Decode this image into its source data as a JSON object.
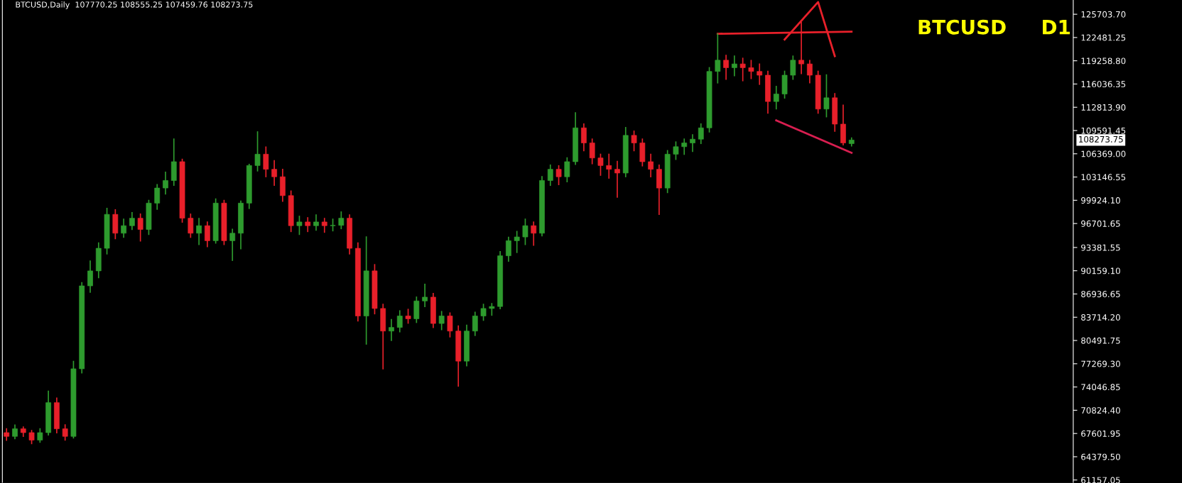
{
  "chart_data": {
    "type": "candlestick",
    "title": "BTCUSD,Daily  107770.25 108555.25 107459.76 108273.75",
    "subtitle": "BTCUSD     D1",
    "categories": [
      null,
      null,
      null,
      null,
      null,
      null,
      null,
      null,
      null,
      null,
      null,
      null,
      null,
      null,
      null,
      null,
      null,
      null,
      null,
      null,
      null,
      null,
      null,
      null,
      null,
      null,
      null,
      null,
      null,
      null,
      null,
      null,
      null,
      null,
      null,
      null,
      null,
      null,
      null,
      null,
      null,
      null,
      null,
      null,
      null,
      null,
      null,
      null,
      null,
      null,
      null,
      null,
      null,
      null,
      null,
      null,
      null,
      null,
      null,
      null,
      null,
      null,
      null,
      null,
      null,
      null,
      null,
      null,
      null,
      null,
      null,
      null,
      null,
      null,
      null,
      null,
      null,
      null,
      null,
      null,
      null,
      null,
      null,
      null,
      null,
      null,
      null,
      null,
      null,
      null,
      null,
      null,
      null,
      null,
      null,
      null,
      null,
      null,
      null,
      null,
      null,
      null,
      null,
      null,
      null,
      null,
      null,
      null,
      null,
      null,
      null,
      null,
      null,
      null,
      null,
      null,
      null,
      null,
      null,
      null,
      null,
      null,
      null,
      null,
      null,
      null,
      null,
      null
    ],
    "ohlc": [
      [
        67720,
        68250,
        66680,
        67200
      ],
      [
        67200,
        68760,
        66900,
        68250
      ],
      [
        68250,
        68500,
        67200,
        67720
      ],
      [
        67720,
        68000,
        66200,
        66680
      ],
      [
        66680,
        68250,
        66400,
        67720
      ],
      [
        67720,
        73460,
        67400,
        71880
      ],
      [
        71880,
        72500,
        67700,
        68250
      ],
      [
        68250,
        68800,
        66700,
        67200
      ],
      [
        67200,
        77600,
        67000,
        76570
      ],
      [
        76570,
        88500,
        76000,
        88060
      ],
      [
        88060,
        91500,
        87200,
        90140
      ],
      [
        90140,
        94000,
        89200,
        93270
      ],
      [
        93270,
        98800,
        92500,
        97970
      ],
      [
        97970,
        98600,
        94600,
        95360
      ],
      [
        95360,
        97300,
        94800,
        96400
      ],
      [
        96400,
        98200,
        95900,
        97440
      ],
      [
        97440,
        98000,
        94300,
        95880
      ],
      [
        95880,
        99900,
        95200,
        99530
      ],
      [
        99530,
        102100,
        98700,
        101620
      ],
      [
        101620,
        103800,
        100800,
        102660
      ],
      [
        102660,
        108400,
        102000,
        105270
      ],
      [
        105270,
        105600,
        96900,
        97440
      ],
      [
        97440,
        98000,
        94800,
        95360
      ],
      [
        95360,
        97400,
        93800,
        96400
      ],
      [
        96400,
        96900,
        93500,
        94320
      ],
      [
        94320,
        100100,
        94000,
        99530
      ],
      [
        99530,
        99900,
        93800,
        94320
      ],
      [
        94320,
        95900,
        91600,
        95360
      ],
      [
        95360,
        99800,
        93200,
        99530
      ],
      [
        99530,
        104900,
        98800,
        104740
      ],
      [
        104740,
        109400,
        104000,
        106310
      ],
      [
        106310,
        107300,
        103200,
        104220
      ],
      [
        104220,
        105400,
        102000,
        103180
      ],
      [
        103180,
        104200,
        99800,
        100570
      ],
      [
        100570,
        101200,
        95600,
        96400
      ],
      [
        96400,
        97700,
        95200,
        96920
      ],
      [
        96920,
        97500,
        95600,
        96400
      ],
      [
        96400,
        97900,
        95800,
        96920
      ],
      [
        96920,
        97400,
        95500,
        96400
      ],
      [
        96400,
        97300,
        95700,
        96450
      ],
      [
        96450,
        98300,
        96000,
        97440
      ],
      [
        97440,
        97900,
        92500,
        93270
      ],
      [
        93270,
        94000,
        83200,
        83890
      ],
      [
        83890,
        94840,
        80000,
        90140
      ],
      [
        90140,
        91000,
        84200,
        84930
      ],
      [
        84930,
        85500,
        76570,
        81800
      ],
      [
        81800,
        83400,
        80500,
        82300
      ],
      [
        82300,
        84600,
        81700,
        83890
      ],
      [
        83890,
        84800,
        82900,
        83500
      ],
      [
        83500,
        86500,
        83000,
        85970
      ],
      [
        85970,
        88270,
        85200,
        86500
      ],
      [
        86500,
        87000,
        82300,
        82850
      ],
      [
        82850,
        84500,
        82000,
        83890
      ],
      [
        83890,
        84300,
        81000,
        81800
      ],
      [
        81800,
        82500,
        74170,
        77630
      ],
      [
        77630,
        82600,
        77000,
        81800
      ],
      [
        81800,
        84400,
        81200,
        83890
      ],
      [
        83890,
        85500,
        83300,
        84930
      ],
      [
        84930,
        85600,
        84000,
        85200
      ],
      [
        85200,
        92800,
        84900,
        92230
      ],
      [
        92230,
        94800,
        91500,
        94320
      ],
      [
        94320,
        95600,
        92700,
        94840
      ],
      [
        94840,
        97300,
        93800,
        96400
      ],
      [
        96400,
        96900,
        93700,
        95360
      ],
      [
        95360,
        103200,
        95000,
        102660
      ],
      [
        102660,
        104800,
        102000,
        104220
      ],
      [
        104220,
        104700,
        102100,
        103180
      ],
      [
        103180,
        105800,
        102500,
        105270
      ],
      [
        105270,
        112040,
        104900,
        109960
      ],
      [
        109960,
        110500,
        106800,
        107870
      ],
      [
        107870,
        108400,
        105000,
        105790
      ],
      [
        105790,
        106300,
        103400,
        104740
      ],
      [
        104740,
        106300,
        103000,
        104220
      ],
      [
        104220,
        105300,
        100360,
        103700
      ],
      [
        103700,
        110000,
        103200,
        108920
      ],
      [
        108920,
        109500,
        106800,
        107870
      ],
      [
        107870,
        108400,
        104700,
        105270
      ],
      [
        105270,
        106300,
        103200,
        104220
      ],
      [
        104220,
        104800,
        97970,
        101620
      ],
      [
        101620,
        106800,
        101000,
        106310
      ],
      [
        106310,
        108000,
        105600,
        107350
      ],
      [
        107350,
        108400,
        106300,
        107870
      ],
      [
        107870,
        109000,
        106700,
        108390
      ],
      [
        108390,
        110500,
        107800,
        109960
      ],
      [
        109960,
        118300,
        109400,
        117780
      ],
      [
        117780,
        122990,
        116200,
        119340
      ],
      [
        119340,
        120000,
        116700,
        118300
      ],
      [
        118300,
        119900,
        117200,
        118820
      ],
      [
        118820,
        119600,
        116500,
        118300
      ],
      [
        118300,
        119300,
        116800,
        117780
      ],
      [
        117780,
        118800,
        116000,
        117260
      ],
      [
        117260,
        117800,
        112000,
        113610
      ],
      [
        113610,
        115700,
        112600,
        114650
      ],
      [
        114650,
        117800,
        114100,
        117260
      ],
      [
        117260,
        119900,
        116700,
        119340
      ],
      [
        119340,
        124560,
        117500,
        118820
      ],
      [
        118820,
        119300,
        116200,
        117260
      ],
      [
        117260,
        117800,
        112000,
        112570
      ],
      [
        112570,
        117300,
        111500,
        114130
      ],
      [
        114130,
        114700,
        109500,
        110480
      ],
      [
        110480,
        113100,
        107600,
        107870
      ],
      [
        107770.25,
        108555.25,
        107459.76,
        108273.75
      ],
      null,
      null,
      null,
      null,
      null,
      null,
      null,
      null,
      null,
      null,
      null,
      null,
      null,
      null,
      null,
      null,
      null,
      null,
      null,
      null,
      null,
      null,
      null,
      null,
      null,
      null
    ],
    "colors": [
      "#e8202a",
      "#2e9b2e",
      "#e8202a",
      "#e8202a",
      "#2e9b2e",
      "#2e9b2e",
      "#e8202a",
      "#e8202a",
      "#2e9b2e",
      "#2e9b2e",
      "#2e9b2e",
      "#2e9b2e",
      "#2e9b2e",
      "#e8202a",
      "#2e9b2e",
      "#2e9b2e",
      "#e8202a",
      "#2e9b2e",
      "#2e9b2e",
      "#2e9b2e",
      "#2e9b2e",
      "#e8202a",
      "#e8202a",
      "#2e9b2e",
      "#e8202a",
      "#2e9b2e",
      "#e8202a",
      "#2e9b2e",
      "#2e9b2e",
      "#2e9b2e",
      "#2e9b2e",
      "#e8202a",
      "#e8202a",
      "#e8202a",
      "#e8202a",
      "#2e9b2e",
      "#e8202a",
      "#2e9b2e",
      "#e8202a",
      "#2e9b2e",
      "#2e9b2e",
      "#e8202a",
      "#e8202a",
      "#2e9b2e",
      "#e8202a",
      "#e8202a",
      "#2e9b2e",
      "#2e9b2e",
      "#e8202a",
      "#2e9b2e",
      "#2e9b2e",
      "#e8202a",
      "#2e9b2e",
      "#e8202a",
      "#e8202a",
      "#2e9b2e",
      "#2e9b2e",
      "#2e9b2e",
      "#2e9b2e",
      "#2e9b2e",
      "#2e9b2e",
      "#2e9b2e",
      "#2e9b2e",
      "#e8202a",
      "#2e9b2e",
      "#2e9b2e",
      "#e8202a",
      "#2e9b2e",
      "#2e9b2e",
      "#e8202a",
      "#e8202a",
      "#e8202a",
      "#e8202a",
      "#e8202a",
      "#2e9b2e",
      "#e8202a",
      "#e8202a",
      "#e8202a",
      "#e8202a",
      "#2e9b2e",
      "#2e9b2e",
      "#2e9b2e",
      "#2e9b2e",
      "#2e9b2e",
      "#2e9b2e",
      "#2e9b2e",
      "#e8202a",
      "#2e9b2e",
      "#e8202a",
      "#e8202a",
      "#e8202a",
      "#e8202a",
      "#2e9b2e",
      "#2e9b2e",
      "#2e9b2e",
      "#e8202a",
      "#e8202a",
      "#e8202a",
      "#2e9b2e",
      "#e8202a",
      "#e8202a",
      "#2e9b2e",
      null,
      null,
      null,
      null,
      null,
      null,
      null,
      null,
      null,
      null,
      null,
      null,
      null,
      null,
      null,
      null,
      null,
      null,
      null,
      null,
      null,
      null,
      null,
      null,
      null,
      null
    ],
    "series": [
      {
        "type": "line",
        "color": "#e8202a",
        "values": [
          null,
          null,
          null,
          null,
          null,
          null,
          null,
          null,
          null,
          null,
          null,
          null,
          null,
          null,
          null,
          null,
          null,
          null,
          null,
          null,
          null,
          null,
          null,
          null,
          null,
          null,
          null,
          null,
          null,
          null,
          null,
          null,
          null,
          null,
          null,
          null,
          null,
          null,
          null,
          null,
          null,
          null,
          null,
          null,
          null,
          null,
          null,
          null,
          null,
          null,
          null,
          null,
          null,
          null,
          null,
          null,
          null,
          null,
          null,
          null,
          null,
          null,
          null,
          null,
          null,
          null,
          null,
          null,
          null,
          null,
          null,
          null,
          null,
          null,
          null,
          null,
          null,
          null,
          null,
          null,
          null,
          null,
          null,
          null,
          null,
          123000,
          null,
          null,
          null,
          null,
          null,
          null,
          null,
          null,
          null,
          null,
          null,
          null,
          null,
          null,
          null,
          123300,
          null,
          null,
          null,
          null,
          null,
          null,
          null,
          null,
          null,
          null,
          null,
          null,
          null,
          null,
          null,
          null,
          null,
          null,
          null,
          null,
          null,
          null,
          null,
          null,
          null,
          null
        ]
      },
      {
        "type": "line",
        "color": "#e8202a",
        "values": [
          null,
          null,
          null,
          null,
          null,
          null,
          null,
          null,
          null,
          null,
          null,
          null,
          null,
          null,
          null,
          null,
          null,
          null,
          null,
          null,
          null,
          null,
          null,
          null,
          null,
          null,
          null,
          null,
          null,
          null,
          null,
          null,
          null,
          null,
          null,
          null,
          null,
          null,
          null,
          null,
          null,
          null,
          null,
          null,
          null,
          null,
          null,
          null,
          null,
          null,
          null,
          null,
          null,
          null,
          null,
          null,
          null,
          null,
          null,
          null,
          null,
          null,
          null,
          null,
          null,
          null,
          null,
          null,
          null,
          null,
          null,
          null,
          null,
          null,
          null,
          null,
          null,
          null,
          null,
          null,
          null,
          null,
          null,
          null,
          null,
          null,
          null,
          null,
          null,
          null,
          null,
          null,
          null,
          122200,
          null,
          null,
          null,
          127400,
          null,
          119900,
          null,
          null,
          null,
          null,
          null,
          null,
          null,
          null,
          null,
          null,
          null,
          null,
          null,
          null,
          null,
          null,
          null,
          null,
          null,
          null,
          null,
          null,
          null,
          null,
          null,
          null,
          null,
          null
        ]
      },
      {
        "type": "line",
        "color": "#d81e50",
        "values": [
          null,
          null,
          null,
          null,
          null,
          null,
          null,
          null,
          null,
          null,
          null,
          null,
          null,
          null,
          null,
          null,
          null,
          null,
          null,
          null,
          null,
          null,
          null,
          null,
          null,
          null,
          null,
          null,
          null,
          null,
          null,
          null,
          null,
          null,
          null,
          null,
          null,
          null,
          null,
          null,
          null,
          null,
          null,
          null,
          null,
          null,
          null,
          null,
          null,
          null,
          null,
          null,
          null,
          null,
          null,
          null,
          null,
          null,
          null,
          null,
          null,
          null,
          null,
          null,
          null,
          null,
          null,
          null,
          null,
          null,
          null,
          null,
          null,
          null,
          null,
          null,
          null,
          null,
          null,
          null,
          null,
          null,
          null,
          null,
          null,
          null,
          null,
          null,
          null,
          null,
          null,
          null,
          111000,
          null,
          null,
          null,
          null,
          null,
          null,
          null,
          null,
          106500,
          null,
          null,
          null,
          null,
          null,
          null,
          null,
          null,
          null,
          null,
          null,
          null,
          null,
          null,
          null,
          null,
          null,
          null,
          null,
          null,
          null,
          null,
          null,
          null,
          null,
          null
        ]
      }
    ],
    "ylim": [
      60740,
      127680
    ],
    "yticks": [
      {
        "value": 125703.7,
        "label": "125703.70"
      },
      {
        "value": 122481.25,
        "label": "122481.25"
      },
      {
        "value": 119258.8,
        "label": "119258.80"
      },
      {
        "value": 116036.35,
        "label": "116036.35"
      },
      {
        "value": 112813.9,
        "label": "112813.90"
      },
      {
        "value": 109591.45,
        "label": "109591.45"
      },
      {
        "value": 106369.0,
        "label": "106369.00"
      },
      {
        "value": 103146.55,
        "label": "103146.55"
      },
      {
        "value": 99924.1,
        "label": "99924.10"
      },
      {
        "value": 96701.65,
        "label": "96701.65"
      },
      {
        "value": 93381.55,
        "label": "93381.55"
      },
      {
        "value": 90159.1,
        "label": "90159.10"
      },
      {
        "value": 86936.65,
        "label": "86936.65"
      },
      {
        "value": 83714.2,
        "label": "83714.20"
      },
      {
        "value": 80491.75,
        "label": "80491.75"
      },
      {
        "value": 77269.3,
        "label": "77269.30"
      },
      {
        "value": 74046.85,
        "label": "74046.85"
      },
      {
        "value": 70824.4,
        "label": "70824.40"
      },
      {
        "value": 67601.95,
        "label": "67601.95"
      },
      {
        "value": 64379.5,
        "label": "64379.50"
      },
      {
        "value": 61157.05,
        "label": "61157.05"
      }
    ],
    "annotations": [
      "108273.75"
    ],
    "grid": false,
    "legend": false
  }
}
